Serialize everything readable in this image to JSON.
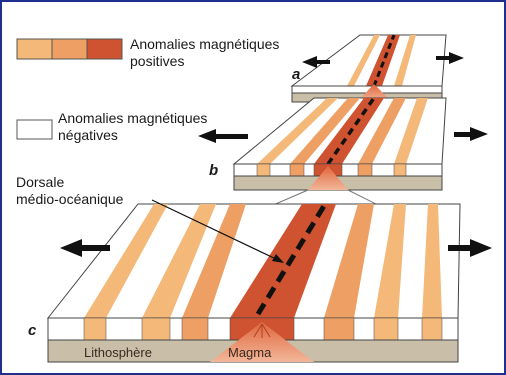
{
  "legend": {
    "positive_label_line1": "Anomalies magnétiques",
    "positive_label_line2": "positives",
    "negative_label_line1": "Anomalies magnétiques",
    "negative_label_line2": "négatives"
  },
  "stages": {
    "a": "a",
    "b": "b",
    "c": "c"
  },
  "ridge_label_line1": "Dorsale",
  "ridge_label_line2": "médio-océanique",
  "lithosphere_label": "Lithosphère",
  "magma_label": "Magma",
  "colors": {
    "positive_light": "#f4b878",
    "positive_mid": "#eea064",
    "positive_dark": "#cf5330",
    "negative": "#ffffff",
    "lithosphere": "#c9bea8",
    "magma": "#e98a5a",
    "frame": "#1d2f8f"
  }
}
